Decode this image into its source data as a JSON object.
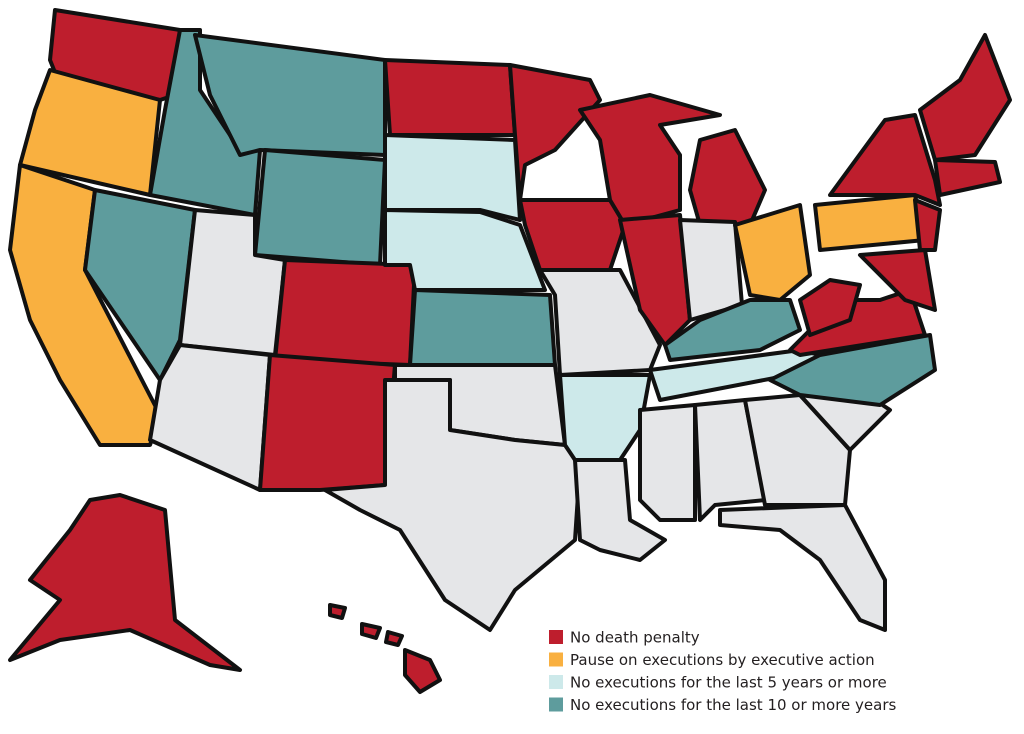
{
  "map": {
    "legend": [
      {
        "label": "No death penalty",
        "color": "#be1e2d"
      },
      {
        "label": "Pause on executions by executive action",
        "color": "#f9b040"
      },
      {
        "label": "No executions for the last 5 years or more",
        "color": "#cde9ea"
      },
      {
        "label": "No executions for the last 10 or more years",
        "color": "#5e9c9d"
      }
    ]
  }
}
